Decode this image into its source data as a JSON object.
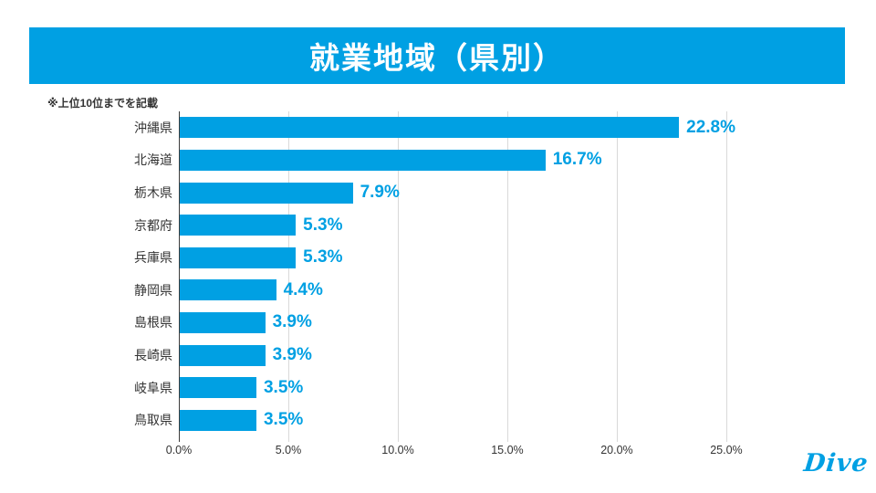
{
  "header": {
    "title": "就業地域（県別）"
  },
  "note": "※上位10位までを記載",
  "chart_data": {
    "type": "bar",
    "orientation": "horizontal",
    "title": "就業地域（県別）",
    "note": "※上位10位までを記載",
    "categories": [
      "沖縄県",
      "北海道",
      "栃木県",
      "京都府",
      "兵庫県",
      "静岡県",
      "島根県",
      "長崎県",
      "岐阜県",
      "鳥取県"
    ],
    "values": [
      22.8,
      16.7,
      7.9,
      5.3,
      5.3,
      4.4,
      3.9,
      3.9,
      3.5,
      3.5
    ],
    "value_labels": [
      "22.8%",
      "16.7%",
      "7.9%",
      "5.3%",
      "5.3%",
      "4.4%",
      "3.9%",
      "3.9%",
      "3.5%",
      "3.5%"
    ],
    "x_tick_values": [
      0,
      5,
      10,
      15,
      20,
      25
    ],
    "x_tick_labels": [
      "0.0%",
      "5.0%",
      "10.0%",
      "15.0%",
      "20.0%",
      "25.0%"
    ],
    "xlim": [
      0,
      26.67
    ],
    "grid": true,
    "legend": "none"
  },
  "colors": {
    "accent": "#00A0E3",
    "grid": "#d9d9d9",
    "axis": "#3c3c3c",
    "text_dark": "#333333",
    "title_text": "#ffffff"
  },
  "logo": "Dive"
}
